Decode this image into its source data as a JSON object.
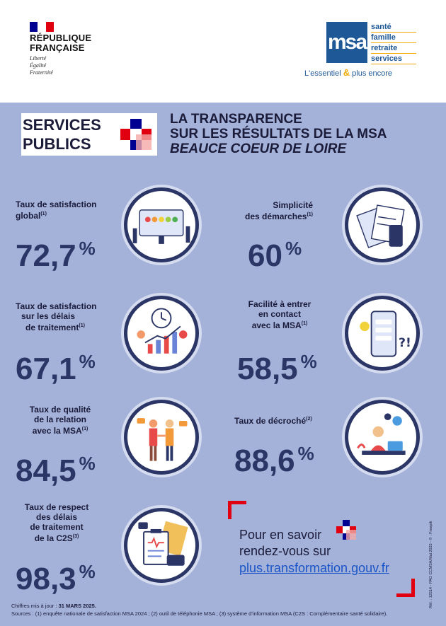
{
  "header": {
    "republique": [
      "RÉPUBLIQUE",
      "FRANÇAISE"
    ],
    "motto": [
      "Liberté",
      "Égalité",
      "Fraternité"
    ],
    "msa_logo": "msa",
    "msa_lines": [
      "santé",
      "famille",
      "retraite",
      "services"
    ],
    "msa_tagline_a": "L'essentiel",
    "msa_tagline_amp": "&",
    "msa_tagline_b": "plus encore"
  },
  "badge": {
    "line1": "SERVICES",
    "line2": "PUBLICS"
  },
  "title": {
    "line1": "LA TRANSPARENCE",
    "line2": "SUR LES RÉSULTATS DE LA MSA",
    "line3": "BEAUCE COEUR DE LOIRE"
  },
  "stats": [
    {
      "label": [
        "Taux de satisfaction",
        "global"
      ],
      "note": "(1)",
      "value": "72,7",
      "unit": "%"
    },
    {
      "label": [
        "Simplicité",
        "des démarches"
      ],
      "note": "(1)",
      "value": "60",
      "unit": "%"
    },
    {
      "label": [
        "Taux de satisfaction",
        "sur les délais",
        "de traitement"
      ],
      "note": "(1)",
      "value": "67,1",
      "unit": "%"
    },
    {
      "label": [
        "Facilité à entrer",
        "en contact",
        "avec la MSA"
      ],
      "note": "(1)",
      "value": "58,5",
      "unit": "%"
    },
    {
      "label": [
        "Taux de qualité",
        "de la relation",
        "avec la MSA"
      ],
      "note": "(1)",
      "value": "84,5",
      "unit": "%"
    },
    {
      "label": [
        "Taux de décroché"
      ],
      "note": "(2)",
      "value": "88,6",
      "unit": "%"
    },
    {
      "label": [
        "Taux de respect",
        "des délais",
        "de traitement",
        "de la C2S"
      ],
      "note": "(3)",
      "value": "98,3",
      "unit": "%"
    }
  ],
  "more": {
    "line1": "Pour en savoir",
    "line2": "rendez-vous sur",
    "link": "plus.transformation.gouv.fr"
  },
  "footer": {
    "date_label": "Chiffres mis à jour :",
    "date_value": "31 MARS 2025.",
    "sources": "Sources : (1) enquête nationale de satisfaction MSA 2024 ; (2) outil de téléphonie MSA ; (3) système d'information MSA (C2S : Complémentaire santé solidaire).",
    "side_ref": "Réf. : 12514 - PAO CCMSA/Mai 2025 - © : Freepik"
  },
  "colors": {
    "background": "#a4b2d9",
    "navy": "#2b3566",
    "red": "#e1000f",
    "blue_flag": "#000091",
    "msa_blue": "#1f5896",
    "msa_gold": "#f2a900"
  }
}
